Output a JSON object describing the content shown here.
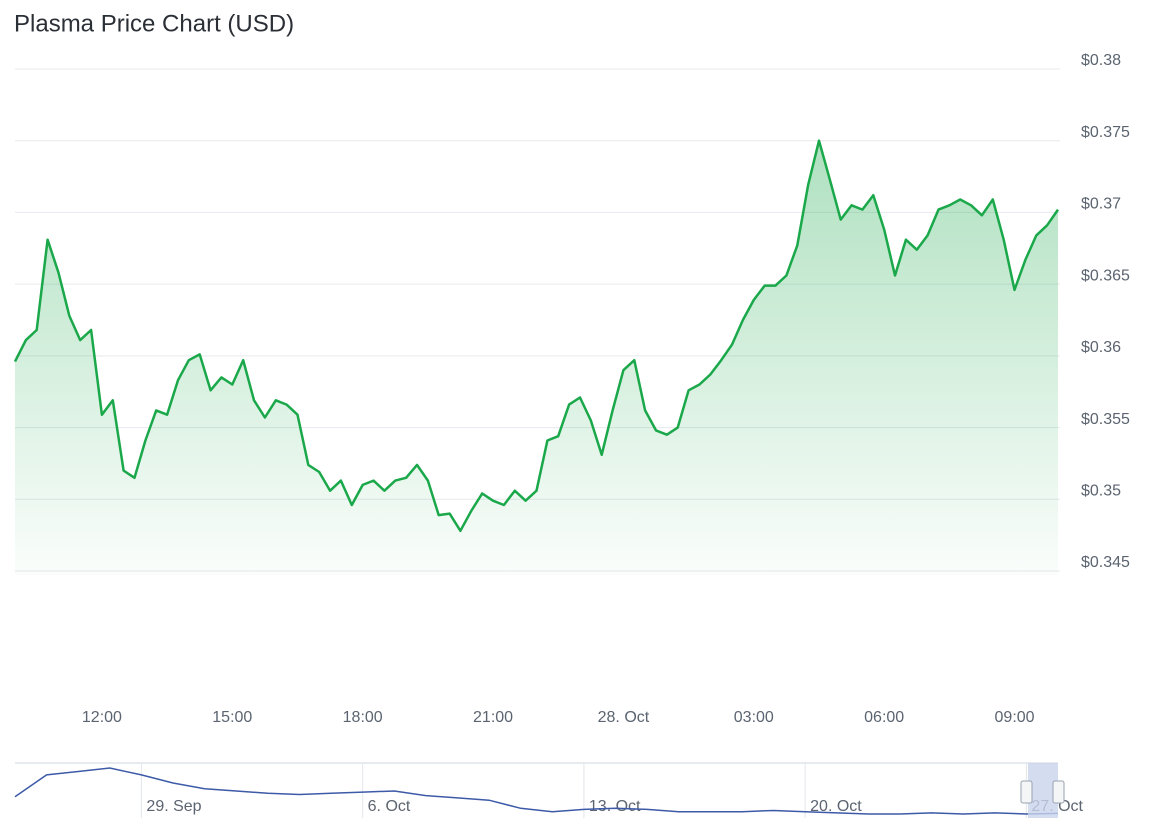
{
  "chart_data": [
    {
      "type": "area",
      "title": "Plasma Price Chart (USD)",
      "color": "#1aa84a",
      "grid": true,
      "x": [
        10,
        10.25,
        10.5,
        10.75,
        11,
        11.25,
        11.5,
        11.75,
        12,
        12.25,
        12.5,
        12.75,
        13,
        13.25,
        13.5,
        13.75,
        14,
        14.25,
        14.5,
        14.75,
        15,
        15.25,
        15.5,
        15.75,
        16,
        16.25,
        16.5,
        16.75,
        17,
        17.25,
        17.5,
        17.75,
        18,
        18.25,
        18.5,
        18.75,
        19,
        19.25,
        19.5,
        19.75,
        20,
        20.25,
        20.5,
        20.75,
        21,
        21.25,
        21.5,
        21.75,
        22,
        22.25,
        22.5,
        22.75,
        23,
        23.25,
        23.5,
        23.75,
        24,
        24.25,
        24.5,
        24.75,
        25,
        25.25,
        25.5,
        25.75,
        26,
        26.25,
        26.5,
        26.75,
        27,
        27.25,
        27.5,
        27.75,
        28,
        28.25,
        28.5,
        28.75,
        29,
        29.25,
        29.5,
        29.75,
        30,
        30.25,
        30.5,
        30.75,
        31,
        31.25,
        31.5,
        31.75,
        32,
        32.25,
        32.5,
        32.75,
        33,
        33.25,
        33.5,
        33.75,
        34
      ],
      "values": [
        0.3596,
        0.3611,
        0.3618,
        0.3681,
        0.3658,
        0.3628,
        0.3611,
        0.3618,
        0.3559,
        0.3569,
        0.352,
        0.3515,
        0.3541,
        0.3562,
        0.3559,
        0.3583,
        0.3597,
        0.3601,
        0.3576,
        0.3585,
        0.358,
        0.3597,
        0.3569,
        0.3557,
        0.3569,
        0.3566,
        0.3559,
        0.3524,
        0.3519,
        0.3506,
        0.3513,
        0.3496,
        0.351,
        0.3513,
        0.3506,
        0.3513,
        0.3515,
        0.3524,
        0.3513,
        0.3489,
        0.349,
        0.3478,
        0.3492,
        0.3504,
        0.3499,
        0.3496,
        0.3506,
        0.3499,
        0.3506,
        0.3541,
        0.3544,
        0.3566,
        0.3571,
        0.3555,
        0.3531,
        0.3562,
        0.359,
        0.3597,
        0.3562,
        0.3548,
        0.3545,
        0.355,
        0.3576,
        0.358,
        0.3587,
        0.3597,
        0.3608,
        0.3625,
        0.3639,
        0.3649,
        0.3649,
        0.3656,
        0.3677,
        0.3719,
        0.375,
        0.3723,
        0.3695,
        0.3705,
        0.3702,
        0.3712,
        0.3688,
        0.3656,
        0.3681,
        0.3674,
        0.3684,
        0.3702,
        0.3705,
        0.3709,
        0.3705,
        0.3698,
        0.3709,
        0.3681,
        0.3646,
        0.3667,
        0.3684,
        0.3691,
        0.3702
      ],
      "xlim": [
        10,
        34
      ],
      "xticks": [
        {
          "value": 12,
          "label": "12:00"
        },
        {
          "value": 15,
          "label": "15:00"
        },
        {
          "value": 18,
          "label": "18:00"
        },
        {
          "value": 21,
          "label": "21:00"
        },
        {
          "value": 24,
          "label": "28. Oct"
        },
        {
          "value": 27,
          "label": "03:00"
        },
        {
          "value": 30,
          "label": "06:00"
        },
        {
          "value": 33,
          "label": "09:00"
        }
      ],
      "ylim": [
        0.345,
        0.38
      ],
      "yticks": [
        {
          "value": 0.38,
          "label": "$0.38"
        },
        {
          "value": 0.375,
          "label": "$0.375"
        },
        {
          "value": 0.37,
          "label": "$0.37"
        },
        {
          "value": 0.365,
          "label": "$0.365"
        },
        {
          "value": 0.36,
          "label": "$0.36"
        },
        {
          "value": 0.355,
          "label": "$0.355"
        },
        {
          "value": 0.35,
          "label": "$0.35"
        },
        {
          "value": 0.345,
          "label": "$0.345"
        }
      ]
    },
    {
      "type": "line",
      "color": "#3d5aa8",
      "categories": [
        null,
        null,
        null,
        null,
        "29. Sep",
        null,
        null,
        null,
        null,
        null,
        null,
        "6. Oct",
        null,
        null,
        null,
        null,
        null,
        null,
        "13. Oct",
        null,
        null,
        null,
        null,
        null,
        null,
        "20. Oct",
        null,
        null,
        null,
        null,
        null,
        null,
        "27. Oct",
        null
      ],
      "values": [
        0.66,
        1.04,
        1.1,
        1.16,
        1.04,
        0.9,
        0.8,
        0.76,
        0.72,
        0.7,
        0.72,
        0.74,
        0.76,
        0.68,
        0.64,
        0.6,
        0.46,
        0.4,
        0.44,
        0.46,
        0.44,
        0.4,
        0.4,
        0.4,
        0.42,
        0.4,
        0.38,
        0.36,
        0.36,
        0.38,
        0.36,
        0.38,
        0.36,
        0.37
      ]
    }
  ]
}
